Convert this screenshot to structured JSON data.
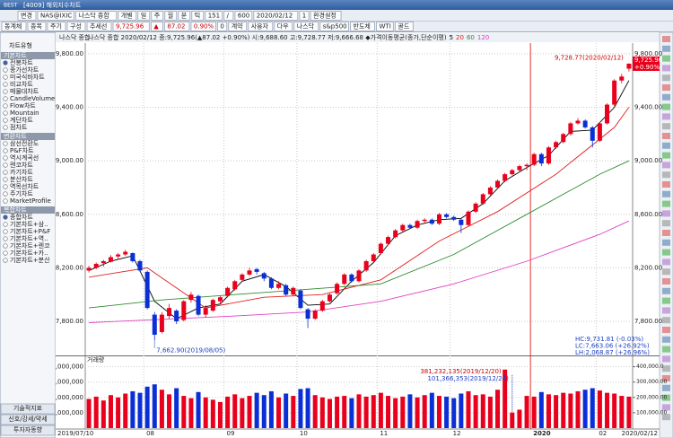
{
  "window": {
    "logo": "BEST",
    "title": "[4009] 해외지수차트"
  },
  "toolbar": {
    "row1": [
      "변경",
      "NAS@IXIC",
      "나스닥 종합",
      "개별",
      "일",
      "주",
      "월",
      "분",
      "틱",
      "151",
      "/",
      "600",
      "2020/02/12",
      "1",
      "환경설정"
    ],
    "row2": [
      "동계체",
      "종목",
      "주기",
      "구성",
      "추세선",
      "9,725.96",
      "▲",
      "87.02",
      "0.90%",
      "0",
      "계약",
      "사용자",
      "다우",
      "나스닥",
      "s&p500",
      "반도체",
      "WTI",
      "골드"
    ]
  },
  "sidebar": {
    "title": "차트유형",
    "groups": [
      {
        "name": "기본차트",
        "items": [
          "전봉차트",
          "종가선차트",
          "미국식바차트",
          "비교차트",
          "매물대차트",
          "CandleVolume",
          "Flow차트",
          "Mountain",
          "계단차트",
          "점차트"
        ]
      },
      {
        "name": "변환차트",
        "items": [
          "삼선전환도",
          "P&F차트",
          "역시계곡선",
          "렌코차트",
          "카기차트",
          "분산차트",
          "역목선차트",
          "주기차트",
          "MarketProfile"
        ]
      },
      {
        "name": "복합차트",
        "items": [
          "종합차트",
          "기본차트+삼..",
          "기본차트+P&F",
          "기본차트+역..",
          "기본차트+렌코",
          "기본차트+카..",
          "기본차트+분산"
        ]
      }
    ],
    "footer": [
      "기술적지표",
      "신호/강세/약세",
      "투자자동향"
    ]
  },
  "chart_data": [
    {
      "type": "candlestick",
      "panel_title": "나스닥 종합",
      "header": "나스닥 종합 2020/02/12 종:9,725.96(▲87.02 +0.90%) 시:9,688.60 고:9,728.77 저:9,666.68 ◆가격이동평균(종가,단순이평)",
      "categories": [
        "2019/07/10",
        null,
        null,
        null,
        null,
        null,
        null,
        null,
        "08",
        null,
        null,
        null,
        null,
        null,
        null,
        null,
        null,
        null,
        null,
        "09",
        null,
        null,
        null,
        null,
        null,
        null,
        null,
        null,
        null,
        "10",
        null,
        null,
        null,
        null,
        null,
        null,
        null,
        null,
        null,
        null,
        "11",
        null,
        null,
        null,
        null,
        null,
        null,
        null,
        null,
        null,
        "12",
        null,
        null,
        null,
        null,
        null,
        null,
        null,
        null,
        null,
        null,
        "2020",
        null,
        null,
        null,
        null,
        null,
        null,
        null,
        null,
        "02",
        null,
        null,
        null,
        "2020/02/12"
      ],
      "ohlc": [
        [
          8180,
          8215,
          8165,
          8200
        ],
        [
          8200,
          8240,
          8190,
          8230
        ],
        [
          8235,
          8260,
          8210,
          8250
        ],
        [
          8245,
          8295,
          8240,
          8280
        ],
        [
          8285,
          8310,
          8260,
          8300
        ],
        [
          8300,
          8335,
          8290,
          8320
        ],
        [
          8310,
          8315,
          8240,
          8250
        ],
        [
          8250,
          8260,
          8170,
          8180
        ],
        [
          8170,
          8180,
          7890,
          7900
        ],
        [
          7850,
          7870,
          7662.9,
          7700
        ],
        [
          7720,
          7870,
          7710,
          7850
        ],
        [
          7840,
          7930,
          7820,
          7900
        ],
        [
          7880,
          7890,
          7780,
          7800
        ],
        [
          7810,
          7960,
          7800,
          7950
        ],
        [
          7960,
          8020,
          7940,
          8000
        ],
        [
          7990,
          8000,
          7840,
          7850
        ],
        [
          7850,
          7920,
          7830,
          7900
        ],
        [
          7880,
          7970,
          7870,
          7960
        ],
        [
          7950,
          7990,
          7930,
          7980
        ],
        [
          7990,
          8060,
          7980,
          8050
        ],
        [
          8040,
          8110,
          8030,
          8100
        ],
        [
          8110,
          8160,
          8100,
          8150
        ],
        [
          8150,
          8200,
          8140,
          8180
        ],
        [
          8190,
          8200,
          8150,
          8170
        ],
        [
          8160,
          8170,
          8100,
          8120
        ],
        [
          8120,
          8130,
          8040,
          8050
        ],
        [
          8050,
          8100,
          8040,
          8080
        ],
        [
          8070,
          8080,
          7990,
          8000
        ],
        [
          8000,
          8060,
          7990,
          8050
        ],
        [
          8030,
          8040,
          7890,
          7900
        ],
        [
          7890,
          7900,
          7750,
          7820
        ],
        [
          7820,
          7890,
          7810,
          7880
        ],
        [
          7880,
          7960,
          7870,
          7950
        ],
        [
          7950,
          8010,
          7940,
          8000
        ],
        [
          8010,
          8090,
          8000,
          8080
        ],
        [
          8080,
          8160,
          8070,
          8150
        ],
        [
          8150,
          8160,
          8090,
          8100
        ],
        [
          8100,
          8190,
          8090,
          8180
        ],
        [
          8180,
          8260,
          8170,
          8250
        ],
        [
          8250,
          8310,
          8240,
          8300
        ],
        [
          8310,
          8390,
          8300,
          8380
        ],
        [
          8380,
          8440,
          8370,
          8430
        ],
        [
          8430,
          8490,
          8420,
          8480
        ],
        [
          8480,
          8530,
          8470,
          8520
        ],
        [
          8520,
          8530,
          8490,
          8500
        ],
        [
          8500,
          8560,
          8490,
          8550
        ],
        [
          8550,
          8570,
          8530,
          8560
        ],
        [
          8560,
          8570,
          8520,
          8530
        ],
        [
          8530,
          8610,
          8520,
          8600
        ],
        [
          8600,
          8610,
          8570,
          8580
        ],
        [
          8580,
          8590,
          8550,
          8560
        ],
        [
          8560,
          8570,
          8460,
          8520
        ],
        [
          8520,
          8630,
          8510,
          8620
        ],
        [
          8620,
          8690,
          8610,
          8680
        ],
        [
          8680,
          8760,
          8670,
          8750
        ],
        [
          8750,
          8810,
          8740,
          8800
        ],
        [
          8800,
          8860,
          8790,
          8850
        ],
        [
          8850,
          8910,
          8840,
          8900
        ],
        [
          8900,
          8940,
          8890,
          8930
        ],
        [
          8930,
          8970,
          8920,
          8960
        ],
        [
          8960,
          8980,
          8930,
          8970
        ],
        [
          8970,
          9060,
          8960,
          9050
        ],
        [
          9050,
          9060,
          8960,
          8980
        ],
        [
          8980,
          9110,
          8970,
          9100
        ],
        [
          9100,
          9150,
          9090,
          9140
        ],
        [
          9140,
          9210,
          9130,
          9200
        ],
        [
          9200,
          9290,
          9190,
          9280
        ],
        [
          9280,
          9320,
          9270,
          9300
        ],
        [
          9300,
          9310,
          9240,
          9250
        ],
        [
          9250,
          9260,
          9100,
          9150
        ],
        [
          9150,
          9290,
          9140,
          9280
        ],
        [
          9280,
          9430,
          9270,
          9420
        ],
        [
          9420,
          9610,
          9410,
          9600
        ],
        [
          9600,
          9650,
          9580,
          9630
        ],
        [
          9688.6,
          9728.77,
          9666.68,
          9725.96
        ]
      ],
      "up_color": "#e8001c",
      "down_color": "#0a2fd6",
      "year_marker_color": "#e00000",
      "series": [
        {
          "name": "5",
          "color": "#000000",
          "x": [
            0,
            3,
            6,
            9,
            12,
            15,
            18,
            21,
            24,
            27,
            30,
            33,
            36,
            39,
            42,
            45,
            48,
            51,
            54,
            57,
            60,
            63,
            66,
            69,
            72,
            74
          ],
          "values": [
            8180,
            8250,
            8290,
            7950,
            7820,
            7900,
            7930,
            8100,
            8150,
            8060,
            7920,
            7930,
            8100,
            8240,
            8440,
            8520,
            8560,
            8570,
            8680,
            8850,
            8950,
            9040,
            9220,
            9230,
            9400,
            9600
          ]
        },
        {
          "name": "20",
          "color": "#e02020",
          "x": [
            0,
            8,
            16,
            24,
            32,
            40,
            48,
            56,
            64,
            72,
            74
          ],
          "values": [
            8130,
            8200,
            7900,
            7980,
            8000,
            8110,
            8400,
            8620,
            8900,
            9250,
            9400
          ]
        },
        {
          "name": "60",
          "color": "#2e8b2e",
          "x": [
            0,
            10,
            20,
            30,
            40,
            50,
            60,
            70,
            74
          ],
          "values": [
            7900,
            7960,
            8000,
            8040,
            8080,
            8300,
            8600,
            8900,
            9000
          ]
        },
        {
          "name": "120",
          "color": "#e040c0",
          "x": [
            0,
            20,
            30,
            40,
            50,
            60,
            70,
            74
          ],
          "values": [
            7790,
            7840,
            7870,
            7950,
            8080,
            8250,
            8450,
            8550
          ]
        }
      ],
      "ylim": [
        7552,
        9880
      ],
      "yticks": [
        {
          "value": 7800,
          "label": "7,800.00"
        },
        {
          "value": 8200,
          "label": "8,200.00"
        },
        {
          "value": 8600,
          "label": "8,600.00"
        },
        {
          "value": 9000,
          "label": "9,000.00"
        },
        {
          "value": 9400,
          "label": "9,400.00"
        },
        {
          "value": 9800,
          "label": "9,800.00"
        }
      ],
      "grid": true,
      "last_price_label": "9,725.96",
      "last_change_label": "+0.90%",
      "annotations": [
        "9,728.77(2020/02/12)",
        "7,662.90(2019/08/05)",
        "HC:9,731.81 (-0.03%)",
        "LC:7,663.06 (+26.92%)",
        "LH:2,068.87 (+26.96%)"
      ]
    },
    {
      "type": "bar",
      "panel_title": "거래량",
      "values": [
        190000000,
        205000000,
        180000000,
        215000000,
        200000000,
        225000000,
        240000000,
        230000000,
        270000000,
        285000000,
        250000000,
        220000000,
        260000000,
        210000000,
        195000000,
        235000000,
        200000000,
        185000000,
        170000000,
        205000000,
        220000000,
        195000000,
        210000000,
        230000000,
        215000000,
        240000000,
        200000000,
        225000000,
        210000000,
        255000000,
        260000000,
        215000000,
        200000000,
        190000000,
        205000000,
        210000000,
        195000000,
        220000000,
        205000000,
        215000000,
        230000000,
        210000000,
        195000000,
        205000000,
        220000000,
        200000000,
        215000000,
        230000000,
        210000000,
        205000000,
        195000000,
        225000000,
        240000000,
        215000000,
        220000000,
        205000000,
        250000000,
        381232135,
        101366353,
        120000000,
        210000000,
        205000000,
        235000000,
        220000000,
        215000000,
        230000000,
        225000000,
        240000000,
        250000000,
        260000000,
        245000000,
        230000000,
        225000000,
        210000000,
        205000000
      ],
      "ylim": [
        0,
        450000000
      ],
      "yticks": [
        {
          "value": 100000000,
          "label": "100,000,000"
        },
        {
          "value": 200000000,
          "label": "200,000,000"
        },
        {
          "value": 300000000,
          "label": "300,000,000"
        },
        {
          "value": 400000000,
          "label": "400,000,000"
        }
      ],
      "y2lim": [
        0,
        450000
      ],
      "y2ticks": [
        {
          "value": 100000,
          "label": "100,000.00"
        },
        {
          "value": 200000,
          "label": "200,000.00"
        },
        {
          "value": 300000,
          "label": "300,000.00"
        },
        {
          "value": 400000,
          "label": "400,000.0"
        }
      ],
      "annotations": [
        "381,232,135(2019/12/20)",
        "101,366,353(2019/12/24)"
      ]
    }
  ]
}
